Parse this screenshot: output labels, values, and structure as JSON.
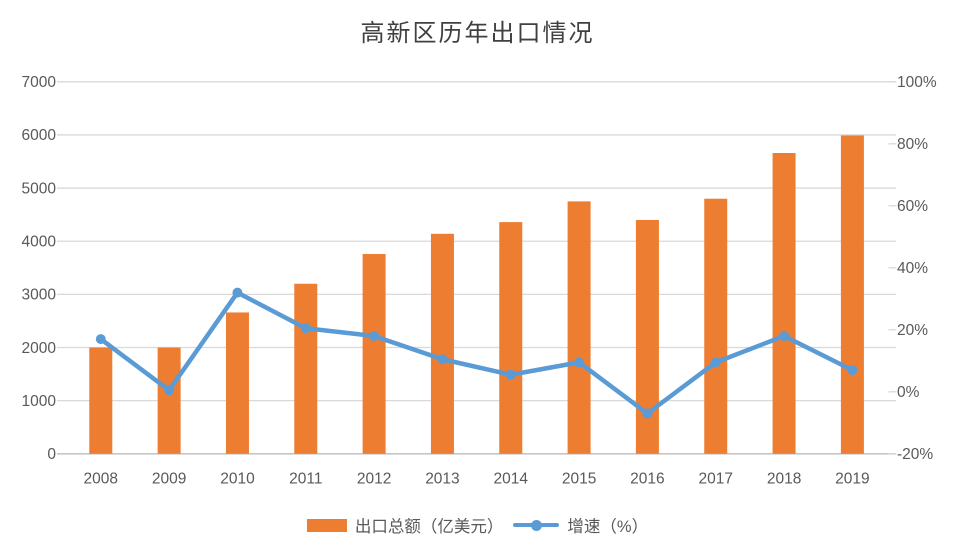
{
  "chart_data": {
    "type": "combo-bar-line",
    "title": "高新区历年出口情况",
    "categories": [
      "2008",
      "2009",
      "2010",
      "2011",
      "2012",
      "2013",
      "2014",
      "2015",
      "2016",
      "2017",
      "2018",
      "2019"
    ],
    "series": [
      {
        "name": "出口总额（亿美元）",
        "type": "bar",
        "axis": "left",
        "color": "#ED7D31",
        "values": [
          2000,
          2000,
          2660,
          3200,
          3760,
          4140,
          4360,
          4750,
          4400,
          4800,
          5660,
          5990
        ]
      },
      {
        "name": "增速（%）",
        "type": "line",
        "axis": "right",
        "color": "#5B9BD5",
        "values": [
          17,
          0.5,
          32,
          20.5,
          18,
          10.5,
          5.5,
          9.5,
          -7,
          9.5,
          18,
          7
        ]
      }
    ],
    "left_axis": {
      "min": 0,
      "max": 7000,
      "tick_values": [
        7000,
        6000,
        5000,
        4000,
        3000,
        2000,
        1000,
        0
      ],
      "tick_labels": [
        "7000",
        "6000",
        "5000",
        "4000",
        "3000",
        "2000",
        "1000",
        "0"
      ]
    },
    "right_axis": {
      "min": -20,
      "max": 100,
      "tick_values": [
        100,
        80,
        60,
        40,
        20,
        0,
        -20
      ],
      "tick_labels": [
        "100%",
        "80%",
        "60%",
        "40%",
        "20%",
        "0%",
        "-20%"
      ]
    },
    "grid": true,
    "legend_position": "bottom",
    "colors": {
      "grid": "#D9D9D9",
      "axis_line": "#C6C6C6",
      "tick_label": "#595959",
      "title": "#404040",
      "bar": "#ED7D31",
      "line": "#5B9BD5"
    }
  }
}
